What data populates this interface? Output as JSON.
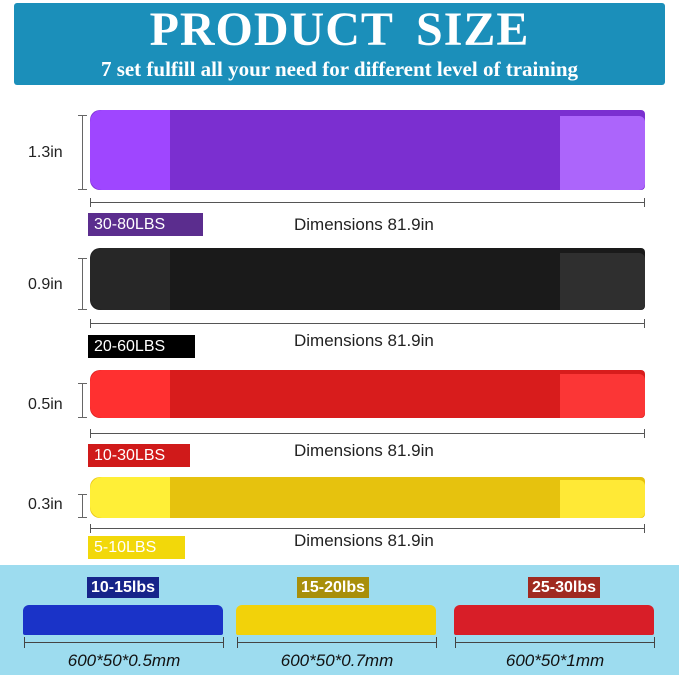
{
  "header": {
    "title": "PRODUCT  SIZE",
    "subtitle": "7 set fulfill all your need for different level of training"
  },
  "bands": [
    {
      "thickness": "1.3in",
      "resistance": "30-80LBS",
      "dimension": "Dimensions 81.9in",
      "color": "#7b2fd0",
      "label_color": "#5b2d8e"
    },
    {
      "thickness": "0.9in",
      "resistance": "20-60LBS",
      "dimension": "Dimensions 81.9in",
      "color": "#1a1a1a",
      "label_color": "#000000"
    },
    {
      "thickness": "0.5in",
      "resistance": "10-30LBS",
      "dimension": "Dimensions 81.9in",
      "color": "#d81c1c",
      "label_color": "#d01a1a"
    },
    {
      "thickness": "0.3in",
      "resistance": "5-10LBS",
      "dimension": "Dimensions 81.9in",
      "color": "#e6c20e",
      "label_color": "#f2d80a"
    }
  ],
  "mini_bands": [
    {
      "resistance": "10-15lbs",
      "size": "600*50*0.5mm",
      "color": "#1a33c8",
      "label_color": "#16248a"
    },
    {
      "resistance": "15-20lbs",
      "size": "600*50*0.7mm",
      "color": "#f2d20a",
      "label_color": "#a88f0a"
    },
    {
      "resistance": "25-30lbs",
      "size": "600*50*1mm",
      "color": "#d81e28",
      "label_color": "#a02a20"
    }
  ]
}
